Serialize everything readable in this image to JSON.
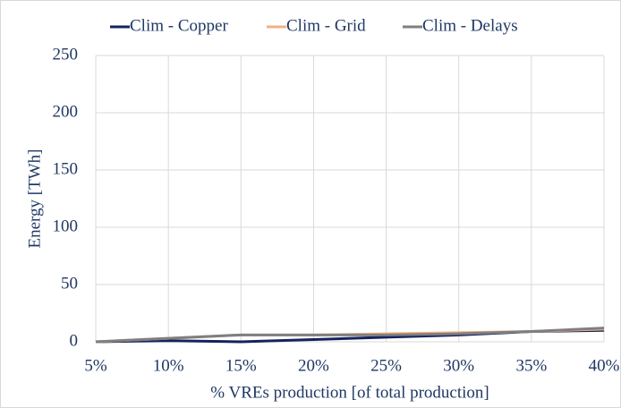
{
  "chart_data": {
    "type": "line",
    "categories": [
      "5%",
      "10%",
      "15%",
      "20%",
      "25%",
      "30%",
      "35%",
      "40%"
    ],
    "series": [
      {
        "name": "Clim - Copper",
        "color": "#14235e",
        "values": [
          0,
          1,
          0,
          2,
          4,
          6,
          9,
          10
        ]
      },
      {
        "name": "Clim - Grid",
        "color": "#f4b183",
        "values": [
          0,
          3,
          6,
          6,
          7,
          8,
          9,
          11
        ]
      },
      {
        "name": "Clim - Delays",
        "color": "#7f7f7f",
        "values": [
          0,
          3,
          6,
          6,
          6,
          7,
          9,
          12
        ]
      }
    ],
    "ylim": [
      0,
      250
    ],
    "yticks": [
      0,
      50,
      100,
      150,
      200,
      250
    ],
    "ylabel": "Energy  [TWh]",
    "xlabel": "% VREs production [of total production]",
    "grid": true,
    "legend": "top"
  }
}
